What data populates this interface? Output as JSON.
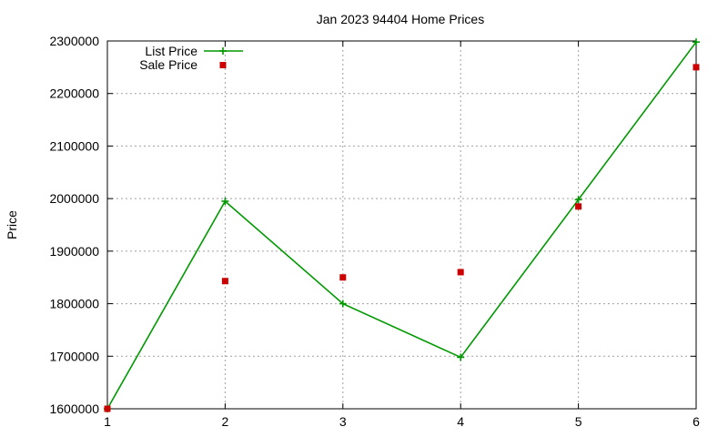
{
  "chart_data": {
    "type": "line",
    "title": "Jan 2023 94404 Home Prices",
    "xlabel": "",
    "ylabel": "Price",
    "x": [
      1,
      2,
      3,
      4,
      5,
      6
    ],
    "xlim": [
      1,
      6
    ],
    "ylim": [
      1600000,
      2300000
    ],
    "xticks": [
      1,
      2,
      3,
      4,
      5,
      6
    ],
    "yticks": [
      1600000,
      1700000,
      1800000,
      1900000,
      2000000,
      2100000,
      2200000,
      2300000
    ],
    "grid": true,
    "legend_position": "top-left",
    "series": [
      {
        "name": "List Price",
        "style": "line-with-plus-markers",
        "color": "#009900",
        "values": [
          1600000,
          1995000,
          1800000,
          1698000,
          1998000,
          2298000
        ]
      },
      {
        "name": "Sale Price",
        "style": "square-markers",
        "color": "#cc0000",
        "values": [
          1600000,
          1843000,
          1850000,
          1860000,
          1985000,
          2250000
        ]
      }
    ]
  }
}
